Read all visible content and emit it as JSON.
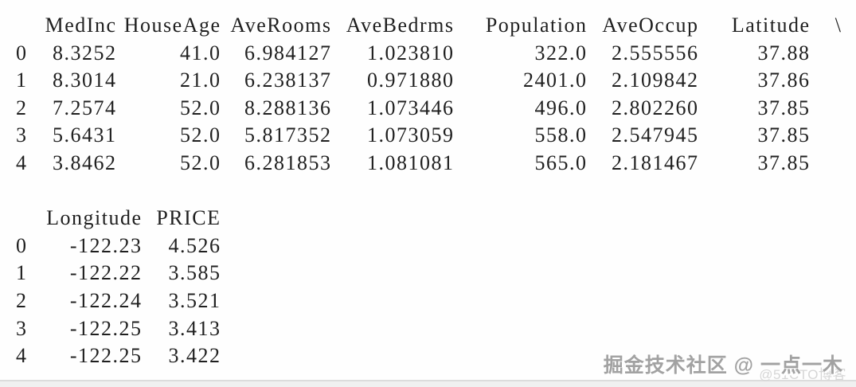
{
  "page": {
    "background_color": "#fefefe",
    "text_color": "#1f1f1f"
  },
  "console_output": {
    "description": "pandas DataFrame head() printout of California housing data",
    "table1": {
      "index_header": "",
      "columns": [
        "MedInc",
        "HouseAge",
        "AveRooms",
        "AveBedrms",
        "Population",
        "AveOccup",
        "Latitude"
      ],
      "continuation": "\\",
      "rows": [
        {
          "index": "0",
          "values": [
            "8.3252",
            "41.0",
            "6.984127",
            "1.023810",
            "322.0",
            "2.555556",
            "37.88"
          ]
        },
        {
          "index": "1",
          "values": [
            "8.3014",
            "21.0",
            "6.238137",
            "0.971880",
            "2401.0",
            "2.109842",
            "37.86"
          ]
        },
        {
          "index": "2",
          "values": [
            "7.2574",
            "52.0",
            "8.288136",
            "1.073446",
            "496.0",
            "2.802260",
            "37.85"
          ]
        },
        {
          "index": "3",
          "values": [
            "5.6431",
            "52.0",
            "5.817352",
            "1.073059",
            "558.0",
            "2.547945",
            "37.85"
          ]
        },
        {
          "index": "4",
          "values": [
            "3.8462",
            "52.0",
            "6.281853",
            "1.081081",
            "565.0",
            "2.181467",
            "37.85"
          ]
        }
      ]
    },
    "table2": {
      "index_header": "",
      "columns": [
        "Longitude",
        "PRICE"
      ],
      "rows": [
        {
          "index": "0",
          "values": [
            "-122.23",
            "4.526"
          ]
        },
        {
          "index": "1",
          "values": [
            "-122.22",
            "3.585"
          ]
        },
        {
          "index": "2",
          "values": [
            "-122.24",
            "3.521"
          ]
        },
        {
          "index": "3",
          "values": [
            "-122.25",
            "3.413"
          ]
        },
        {
          "index": "4",
          "values": [
            "-122.25",
            "3.422"
          ]
        }
      ]
    }
  },
  "watermark": {
    "main_text": "掘金技术社区 @ 一点一木",
    "main_color": "#a2a2a2",
    "sub_text": "@51CTO博客",
    "sub_color": "#d6d6d6"
  },
  "footer": {
    "strip_color": "#f0f0f0",
    "strip_border_color": "#dcdcdc"
  }
}
